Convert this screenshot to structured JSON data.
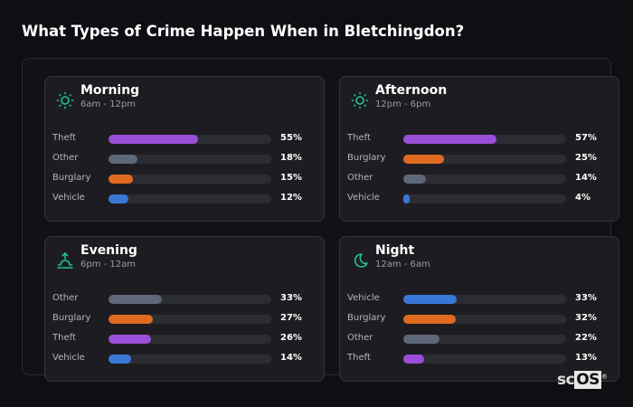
{
  "title": "What Types of Crime Happen When in Bletchingdon?",
  "logo": {
    "prefix": "sc",
    "box": "OS",
    "mark": "®"
  },
  "colors": {
    "Theft": "#9b4fd8",
    "Other": "#5f6878",
    "Burglary": "#e06a1f",
    "Vehicle": "#3a78d8",
    "accent": "#22c39a"
  },
  "chart_data": {
    "type": "bar",
    "title": "What Types of Crime Happen When in Bletchingdon?",
    "unit": "%",
    "xlim": [
      0,
      100
    ],
    "panels": [
      {
        "name": "Morning",
        "range": "6am - 12pm",
        "icon": "sun-icon",
        "categories": [
          "Theft",
          "Other",
          "Burglary",
          "Vehicle"
        ],
        "values": [
          55,
          18,
          15,
          12
        ]
      },
      {
        "name": "Afternoon",
        "range": "12pm - 6pm",
        "icon": "sun-icon",
        "categories": [
          "Theft",
          "Burglary",
          "Other",
          "Vehicle"
        ],
        "values": [
          57,
          25,
          14,
          4
        ]
      },
      {
        "name": "Evening",
        "range": "6pm - 12am",
        "icon": "sunset-icon",
        "categories": [
          "Other",
          "Burglary",
          "Theft",
          "Vehicle"
        ],
        "values": [
          33,
          27,
          26,
          14
        ]
      },
      {
        "name": "Night",
        "range": "12am - 6am",
        "icon": "moon-icon",
        "categories": [
          "Vehicle",
          "Burglary",
          "Other",
          "Theft"
        ],
        "values": [
          33,
          32,
          22,
          13
        ]
      }
    ]
  }
}
